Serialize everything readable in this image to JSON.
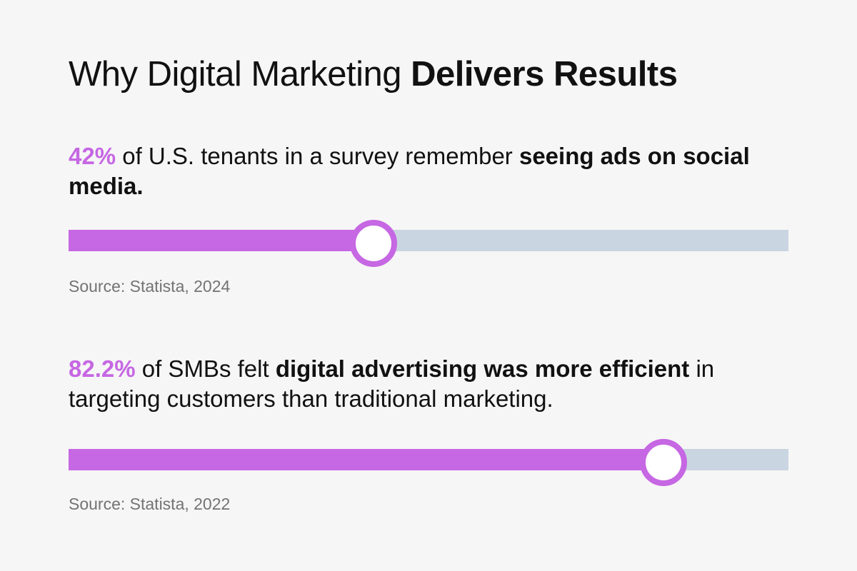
{
  "title": {
    "light": "Why Digital Marketing",
    "bold": "Delivers Results"
  },
  "colors": {
    "accent": "#c667e3",
    "track": "#c9d5e1",
    "background": "#f6f6f6",
    "text": "#111111",
    "source": "#737373"
  },
  "chart_data": [
    {
      "type": "bar",
      "categories": [
        "U.S. tenants who remember seeing ads on social media"
      ],
      "values": [
        42
      ],
      "ylim": [
        0,
        100
      ],
      "label": "42%",
      "text_mid": " of U.S. tenants in a survey remember ",
      "text_bold": "seeing ads on social media.",
      "text_end": "",
      "source": "Source: Statista, 2024"
    },
    {
      "type": "bar",
      "categories": [
        "SMBs who felt digital advertising was more efficient"
      ],
      "values": [
        82.2
      ],
      "ylim": [
        0,
        100
      ],
      "label": "82.2%",
      "text_mid": " of SMBs felt ",
      "text_bold": "digital advertising was more efficient",
      "text_end": " in targeting customers than traditional marketing.",
      "source": "Source: Statista, 2022"
    }
  ]
}
